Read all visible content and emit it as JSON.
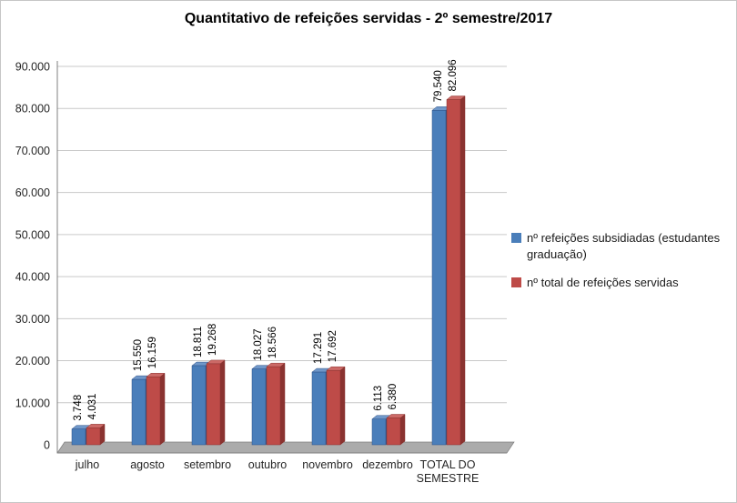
{
  "chart_data": {
    "type": "bar",
    "style": "3d-clustered",
    "title": "Quantitativo de refeições servidas - 2º semestre/2017",
    "categories": [
      "julho",
      "agosto",
      "setembro",
      "outubro",
      "novembro",
      "dezembro",
      "TOTAL DO SEMESTRE"
    ],
    "series": [
      {
        "name": "nº refeições subsidiadas (estudantes graduação)",
        "color": "#4A7EBA",
        "color_top": "#6F97C9",
        "color_side": "#2E5287",
        "values": [
          3748,
          15550,
          18811,
          18027,
          17291,
          6113,
          79540
        ],
        "labels": [
          "3.748",
          "15.550",
          "18.811",
          "18.027",
          "17.291",
          "6.113",
          "79.540"
        ]
      },
      {
        "name": "nº total de refeições servidas",
        "color": "#BE4B48",
        "color_top": "#CC6A67",
        "color_side": "#8A3330",
        "values": [
          4031,
          16159,
          19268,
          18566,
          17692,
          6380,
          82096
        ],
        "labels": [
          "4.031",
          "16.159",
          "19.268",
          "18.566",
          "17.692",
          "6.380",
          "82.096"
        ]
      }
    ],
    "ylim": [
      0,
      90000
    ],
    "ytick_step": 10000,
    "ytick_labels": [
      "0",
      "10.000",
      "20.000",
      "30.000",
      "40.000",
      "50.000",
      "60.000",
      "70.000",
      "80.000",
      "90.000"
    ],
    "grid": true,
    "legend_position": "right",
    "colors": {
      "gridline": "#C9C9C9",
      "axis": "#808080",
      "floor": "#ABABAB",
      "text": "#262626"
    }
  }
}
